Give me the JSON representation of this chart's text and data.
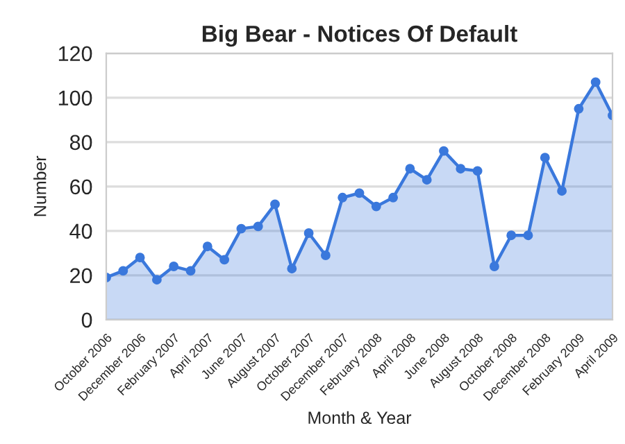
{
  "chart_data": {
    "type": "area",
    "title": "Big Bear - Notices Of Default",
    "xlabel": "Month & Year",
    "ylabel": "Number",
    "categories": [
      "October 2006",
      null,
      "December 2006",
      null,
      "February 2007",
      null,
      "April 2007",
      null,
      "June 2007",
      null,
      "August 2007",
      null,
      "October 2007",
      null,
      "December 2007",
      null,
      "February 2008",
      null,
      "April 2008",
      null,
      "June 2008",
      null,
      "August 2008",
      null,
      "October 2008",
      null,
      "December 2008",
      null,
      "February 2009",
      null,
      "April 2009"
    ],
    "series": [
      {
        "color": "#3a78dc",
        "values": [
          19,
          22,
          28,
          18,
          24,
          22,
          33,
          27,
          41,
          42,
          52,
          23,
          39,
          29,
          55,
          57,
          51,
          55,
          68,
          63,
          76,
          68,
          67,
          24,
          38,
          38,
          73,
          58,
          95,
          107,
          92
        ]
      }
    ],
    "ylim": [
      0,
      120
    ],
    "yticks": [
      0,
      20,
      40,
      60,
      80,
      100,
      120
    ],
    "grid": "y",
    "marker": "circle",
    "legend": false
  }
}
